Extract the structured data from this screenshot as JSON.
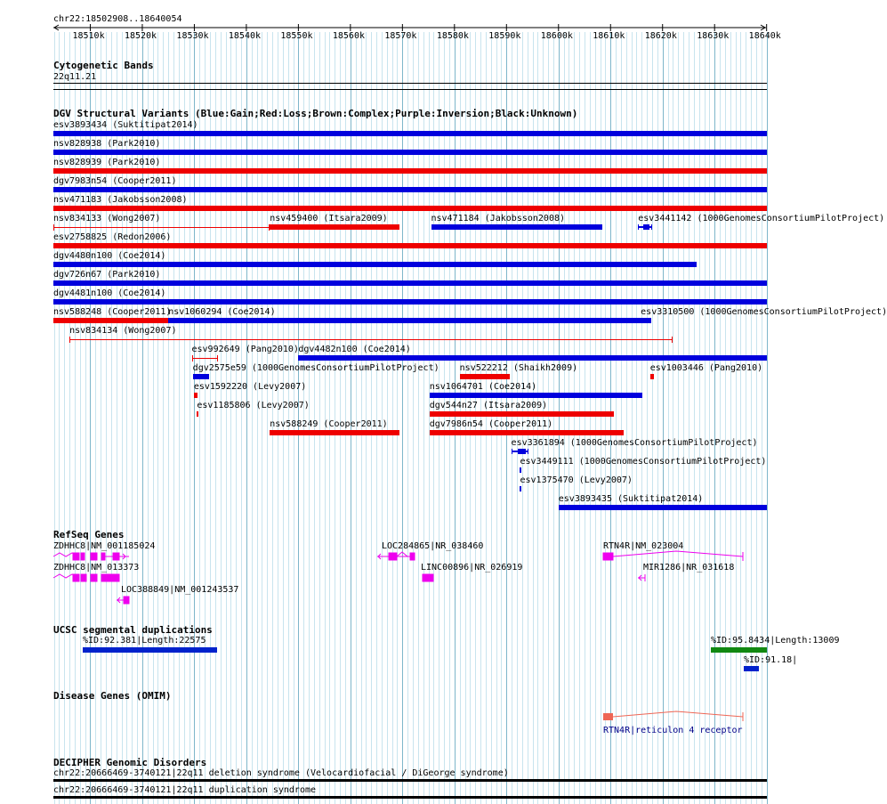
{
  "colors": {
    "gain": "#0000dd",
    "loss": "#ee0000",
    "gene": "#ee00ee",
    "segdup_blue": "#0022cc",
    "segdup_green": "#118811",
    "omim": "#ee6655",
    "omim_text": "#000088",
    "grid_light": "#c8e4ee",
    "grid_dark": "#7eb6ca"
  },
  "header": {
    "region": "chr22:18502908..18640054",
    "ticks": [
      "18510k",
      "18520k",
      "18530k",
      "18540k",
      "18550k",
      "18560k",
      "18570k",
      "18580k",
      "18590k",
      "18600k",
      "18610k",
      "18620k",
      "18630k",
      "18640k"
    ]
  },
  "cytoband": {
    "title": "Cytogenetic Bands",
    "band": "22q11.21"
  },
  "dgv": {
    "title": "DGV Structural Variants (Blue:Gain;Red:Loss;Brown:Complex;Purple:Inversion;Black:Unknown)",
    "rows": [
      [
        {
          "label": "esv3893434 (Suktitipat2014)",
          "start": 18502908,
          "end": 18640054,
          "type": "gain",
          "style": "bar"
        }
      ],
      [
        {
          "label": "nsv828938 (Park2010)",
          "start": 18502908,
          "end": 18640054,
          "type": "gain",
          "style": "bar"
        }
      ],
      [
        {
          "label": "nsv828939 (Park2010)",
          "start": 18502908,
          "end": 18640054,
          "type": "loss",
          "style": "bar"
        }
      ],
      [
        {
          "label": "dgv7983n54 (Cooper2011)",
          "start": 18502908,
          "end": 18640054,
          "type": "gain",
          "style": "bar"
        }
      ],
      [
        {
          "label": "nsv471183 (Jakobsson2008)",
          "start": 18502908,
          "end": 18640054,
          "type": "loss",
          "style": "bar"
        }
      ],
      [
        {
          "label": "nsv834133 (Wong2007)",
          "start": 18502908,
          "end": 18544500,
          "type": "loss",
          "style": "line"
        },
        {
          "label": "nsv459400 (Itsara2009)",
          "start": 18544500,
          "end": 18569500,
          "type": "loss",
          "style": "bar"
        },
        {
          "label": "nsv471184 (Jakobsson2008)",
          "start": 18575500,
          "end": 18608500,
          "type": "gain",
          "style": "bar"
        },
        {
          "label": "esv3441142 (1000GenomesConsortiumPilotProject)",
          "start": 18615300,
          "end": 18618000,
          "type": "gain",
          "style": "exon"
        }
      ],
      [
        {
          "label": "esv2758825 (Redon2006)",
          "start": 18502908,
          "end": 18640054,
          "type": "loss",
          "style": "bar"
        }
      ],
      [
        {
          "label": "dgv4480n100 (Coe2014)",
          "start": 18502908,
          "end": 18626500,
          "type": "gain",
          "style": "bar"
        }
      ],
      [
        {
          "label": "dgv726n67 (Park2010)",
          "start": 18502908,
          "end": 18640054,
          "type": "gain",
          "style": "bar"
        }
      ],
      [
        {
          "label": "dgv4481n100 (Coe2014)",
          "start": 18502908,
          "end": 18640054,
          "type": "gain",
          "style": "bar"
        }
      ],
      [
        {
          "label": "nsv588248 (Cooper2011)",
          "start": 18502908,
          "end": 18524900,
          "type": "loss",
          "style": "bar"
        },
        {
          "label": "nsv1060294 (Coe2014)",
          "start": 18525000,
          "end": 18616200,
          "type": "gain",
          "style": "bar"
        },
        {
          "label": "esv3310500 (1000GenomesConsortiumPilotProject)",
          "start": 18615800,
          "end": 18617900,
          "type": "gain",
          "style": "bar"
        }
      ],
      [
        {
          "label": "nsv834134 (Wong2007)",
          "start": 18506000,
          "end": 18622000,
          "type": "loss",
          "style": "line"
        }
      ],
      [
        {
          "label": "esv992649 (Pang2010)",
          "start": 18529500,
          "end": 18534500,
          "type": "loss",
          "style": "line"
        },
        {
          "label": "dgv4482n100 (Coe2014)",
          "start": 18550000,
          "end": 18640054,
          "type": "gain",
          "style": "bar"
        }
      ],
      [
        {
          "label": "dgv2575e59 (1000GenomesConsortiumPilotProject)",
          "start": 18529700,
          "end": 18532800,
          "type": "gain",
          "style": "bar"
        },
        {
          "label": "nsv522212 (Shaikh2009)",
          "start": 18581000,
          "end": 18590700,
          "type": "loss",
          "style": "bar"
        },
        {
          "label": "esv1003446 (Pang2010)",
          "start": 18617600,
          "end": 18618400,
          "type": "loss",
          "style": "tick"
        }
      ],
      [
        {
          "label": "esv1592220 (Levy2007)",
          "start": 18529900,
          "end": 18530600,
          "type": "loss",
          "style": "bar"
        },
        {
          "label": "nsv1064701 (Coe2014)",
          "start": 18575200,
          "end": 18616200,
          "type": "gain",
          "style": "bar"
        }
      ],
      [
        {
          "label": "esv1185806 (Levy2007)",
          "start": 18530500,
          "end": 18530800,
          "type": "loss",
          "style": "tick"
        },
        {
          "label": "dgv544n27 (Itsara2009)",
          "start": 18575200,
          "end": 18610700,
          "type": "loss",
          "style": "bar"
        }
      ],
      [
        {
          "label": "nsv588249 (Cooper2011)",
          "start": 18544500,
          "end": 18569500,
          "type": "loss",
          "style": "bar"
        },
        {
          "label": "dgv7986n54 (Cooper2011)",
          "start": 18575200,
          "end": 18612500,
          "type": "loss",
          "style": "bar"
        }
      ],
      [
        {
          "label": "esv3361894 (1000GenomesConsortiumPilotProject)",
          "start": 18590900,
          "end": 18594300,
          "type": "gain",
          "style": "exon"
        }
      ],
      [
        {
          "label": "esv3449111 (1000GenomesConsortiumPilotProject)",
          "start": 18592600,
          "end": 18592900,
          "type": "gain",
          "style": "tick"
        }
      ],
      [
        {
          "label": "esv1375470 (Levy2007)",
          "start": 18592600,
          "end": 18592900,
          "type": "gain",
          "style": "tick"
        }
      ],
      [
        {
          "label": "esv3893435 (Suktitipat2014)",
          "start": 18600000,
          "end": 18640054,
          "type": "gain",
          "style": "bar"
        }
      ]
    ]
  },
  "refseq": {
    "title": "RefSeq Genes",
    "genes": [
      {
        "label": "ZDHHC8|NM_001185024",
        "row": 0,
        "label_pos": "left"
      },
      {
        "label": "LOC284865|NR_038460",
        "row": 0,
        "label_pos": "mid1"
      },
      {
        "label": "RTN4R|NM_023004",
        "row": 0,
        "label_pos": "right"
      },
      {
        "label": "ZDHHC8|NM_013373",
        "row": 1,
        "label_pos": "left"
      },
      {
        "label": "LINC00896|NR_026919",
        "row": 1,
        "label_pos": "mid2"
      },
      {
        "label": "MIR1286|NR_031618",
        "row": 1,
        "label_pos": "right2"
      },
      {
        "label": "LOC388849|NM_001243537",
        "row": 2,
        "label_pos": "mid3"
      }
    ]
  },
  "segdup": {
    "title": "UCSC segmental duplications",
    "items": [
      {
        "label": "%ID:92.381|Length:22575"
      },
      {
        "label": "%ID:95.8434|Length:13009"
      },
      {
        "label": "%ID:91.18|"
      }
    ]
  },
  "omim": {
    "title": "Disease Genes (OMIM)",
    "gene_label": "RTN4R|reticulon 4 receptor"
  },
  "decipher": {
    "title": "DECIPHER Genomic Disorders",
    "items": [
      {
        "label": "chr22:20666469-3740121|22q11 deletion syndrome (Velocardiofacial / DiGeorge syndrome)"
      },
      {
        "label": "chr22:20666469-3740121|22q11 duplication syndrome"
      }
    ]
  }
}
